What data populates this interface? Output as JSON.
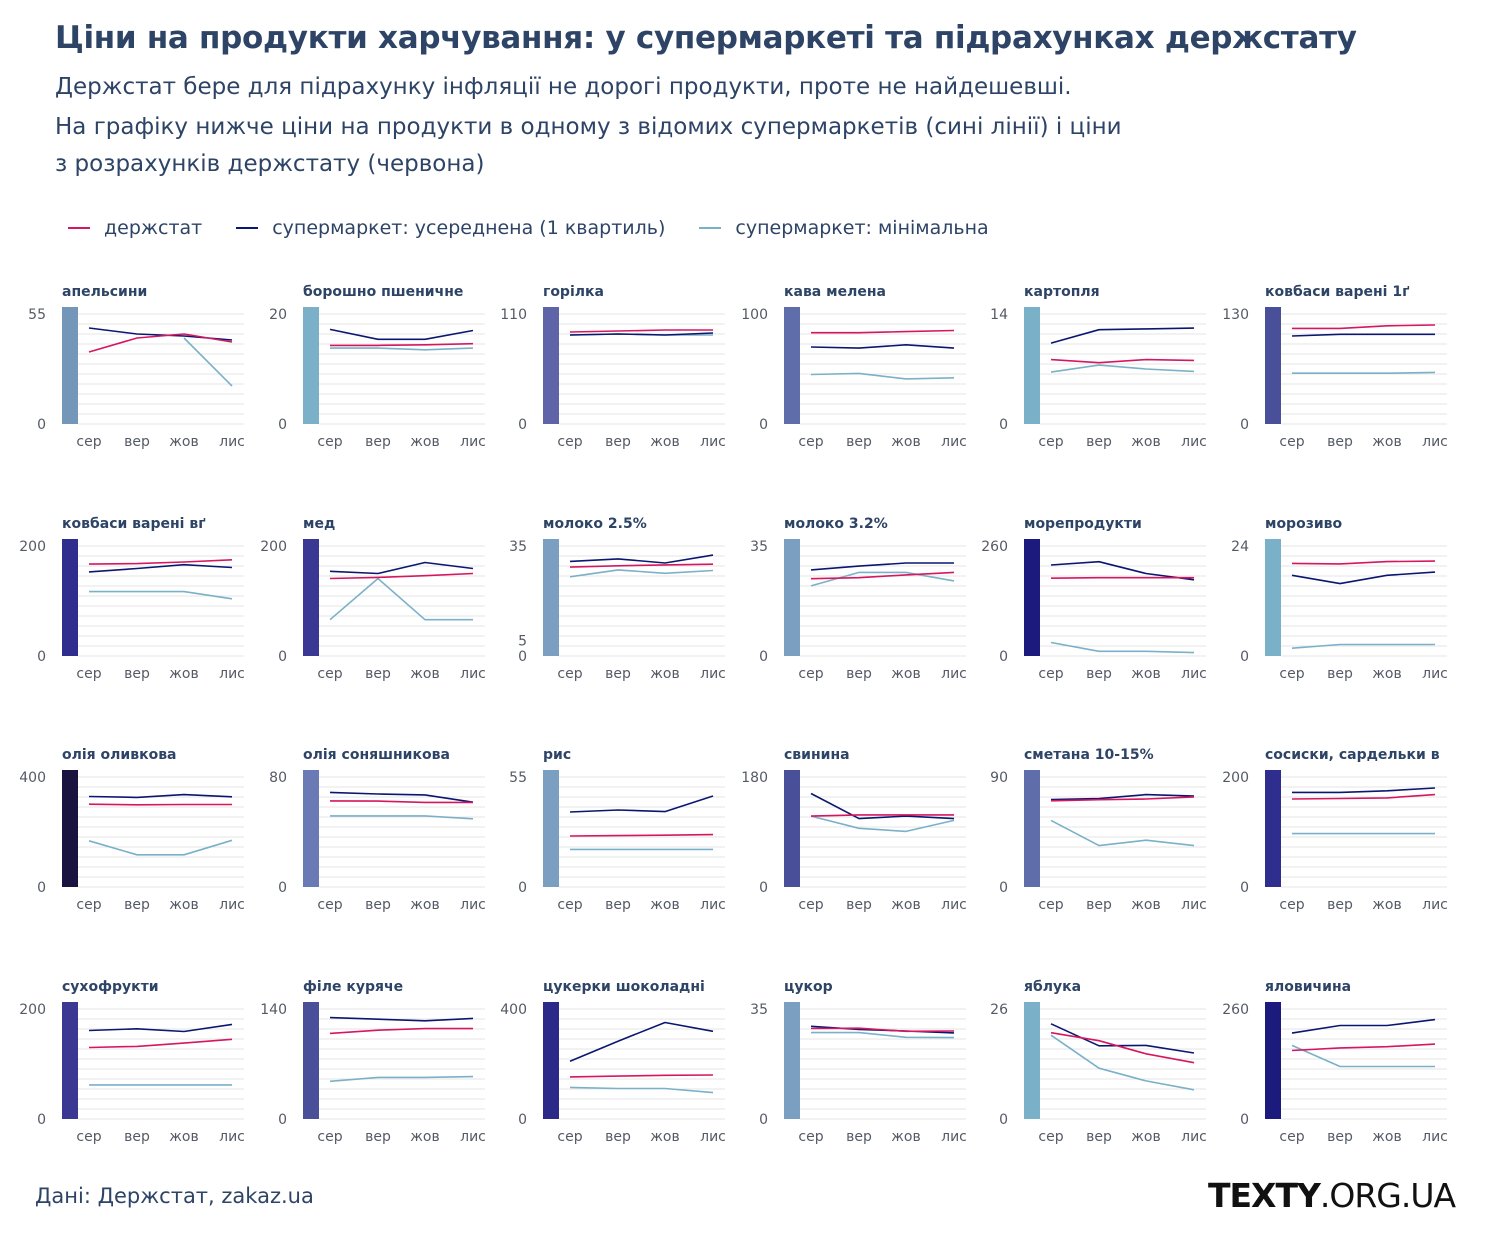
{
  "header": {
    "title": "Ціни на продукти харчування: у супермаркеті та підрахунках держстату",
    "subtitle_lines": [
      "Держстат бере для підрахунку інфляції не дорогі продукти, проте не найдешевші.",
      "На графіку нижче ціни на продукти в одному з відомих супермаркетів (сині лінії) і ціни",
      "з розрахунків держстату (червона)"
    ]
  },
  "legend": [
    {
      "label": "держстат",
      "color": "#d6175f"
    },
    {
      "label": "супермаркет: усереднена (1 квартиль)",
      "color": "#0b1670"
    },
    {
      "label": "супермаркет: мінімальна",
      "color": "#7ab1c8"
    }
  ],
  "footer": {
    "source": "Дані: Держстат, zakaz.ua",
    "logo_bold": "TEXTY",
    "logo_rest": ".ORG.UA"
  },
  "chart_data": {
    "type": "line",
    "x": [
      "сер",
      "вер",
      "жов",
      "лис"
    ],
    "series_names": [
      "держстат",
      "супермаркет: усереднена (1 квартиль)",
      "супермаркет: мінімальна"
    ],
    "series_colors": [
      "#d6175f",
      "#0b1670",
      "#7ab1c8"
    ],
    "panels": [
      {
        "title": "апельсини",
        "yticks": [
          0,
          55
        ],
        "ymax": 55,
        "bar": "#7496b9",
        "series": [
          [
            36,
            43,
            45,
            41
          ],
          [
            48,
            45,
            44,
            42
          ],
          [
            null,
            null,
            43,
            19
          ]
        ]
      },
      {
        "title": "борошно пшеничне",
        "yticks": [
          0,
          20
        ],
        "ymax": 20,
        "bar": "#7ab1c8",
        "series": [
          [
            14.3,
            14.3,
            14.4,
            14.6
          ],
          [
            17.2,
            15.4,
            15.4,
            17
          ],
          [
            13.8,
            13.8,
            13.5,
            13.8
          ]
        ]
      },
      {
        "title": "горілка",
        "yticks": [
          0,
          110
        ],
        "ymax": 110,
        "bar": "#5f63a8",
        "series": [
          [
            92,
            93,
            94,
            94
          ],
          [
            89,
            90,
            89,
            91
          ],
          [
            89,
            90,
            89,
            89
          ]
        ]
      },
      {
        "title": "кава мелена",
        "yticks": [
          0,
          100
        ],
        "ymax": 100,
        "bar": "#5f6eaa",
        "series": [
          [
            83,
            83,
            84,
            85
          ],
          [
            70,
            69,
            72,
            69
          ],
          [
            45,
            46,
            41,
            42
          ]
        ]
      },
      {
        "title": "картопля",
        "yticks": [
          0,
          14
        ],
        "ymax": 14,
        "bar": "#7ab1c8",
        "series": [
          [
            8.2,
            7.8,
            8.2,
            8.1
          ],
          [
            10.3,
            12,
            12.1,
            12.2
          ],
          [
            6.6,
            7.5,
            7,
            6.7
          ]
        ]
      },
      {
        "title": "ковбаси варені 1ґ",
        "yticks": [
          0,
          130
        ],
        "ymax": 130,
        "bar": "#4a4f99",
        "series": [
          [
            113,
            113,
            116,
            117
          ],
          [
            104,
            106,
            106,
            106
          ],
          [
            60,
            60,
            60,
            61
          ]
        ]
      },
      {
        "title": "ковбаси варені вґ",
        "yticks": [
          0,
          200
        ],
        "ymax": 200,
        "bar": "#2f2e8e",
        "series": [
          [
            167,
            168,
            171,
            175
          ],
          [
            153,
            159,
            166,
            161
          ],
          [
            117,
            117,
            117,
            104
          ]
        ]
      },
      {
        "title": "мед",
        "yticks": [
          0,
          200
        ],
        "ymax": 200,
        "bar": "#3b3894",
        "series": [
          [
            141,
            143,
            146,
            150
          ],
          [
            154,
            150,
            170,
            159
          ],
          [
            66,
            141,
            66,
            66
          ]
        ]
      },
      {
        "title": "молоко 2.5%",
        "yticks": [
          0,
          5,
          35
        ],
        "ymax": 35,
        "bar": "#7a9fc0",
        "series": [
          [
            28.3,
            28.7,
            29,
            29.2
          ],
          [
            30.1,
            30.9,
            29.6,
            32.1
          ],
          [
            25.2,
            27.4,
            26.3,
            27.2
          ]
        ]
      },
      {
        "title": "молоко 3.2%",
        "yticks": [
          0,
          35
        ],
        "ymax": 35,
        "bar": "#7a9fc0",
        "series": [
          [
            24.6,
            24.9,
            25.8,
            26.6
          ],
          [
            27.4,
            28.6,
            29.6,
            29.6
          ],
          [
            22.3,
            26.6,
            26.6,
            23.9
          ]
        ]
      },
      {
        "title": "морепродукти",
        "yticks": [
          0,
          260
        ],
        "ymax": 260,
        "bar": "#1d1a7d",
        "series": [
          [
            184,
            185,
            185,
            185
          ],
          [
            215,
            223,
            195,
            180
          ],
          [
            32,
            11,
            11,
            8
          ]
        ]
      },
      {
        "title": "морозиво",
        "yticks": [
          0,
          24
        ],
        "ymax": 24,
        "bar": "#7ab1c8",
        "series": [
          [
            20.2,
            20.1,
            20.6,
            20.7
          ],
          [
            17.6,
            15.8,
            17.6,
            18.3
          ],
          [
            1.7,
            2.5,
            2.5,
            2.5
          ]
        ]
      },
      {
        "title": "олія оливкова",
        "yticks": [
          0,
          400
        ],
        "ymax": 400,
        "bar": "#1b133f",
        "series": [
          [
            301,
            299,
            300,
            300
          ],
          [
            329,
            326,
            336,
            328
          ],
          [
            168,
            117,
            117,
            170
          ]
        ]
      },
      {
        "title": "олія соняшникова",
        "yticks": [
          0,
          80
        ],
        "ymax": 80,
        "bar": "#6a7ab4",
        "series": [
          [
            62.6,
            62.5,
            61.5,
            61.5
          ],
          [
            68.8,
            67.6,
            67,
            61.7
          ],
          [
            51.7,
            51.7,
            51.7,
            49.6
          ]
        ]
      },
      {
        "title": "рис",
        "yticks": [
          0,
          55
        ],
        "ymax": 55,
        "bar": "#7a9fc0",
        "series": [
          [
            25.5,
            25.7,
            25.9,
            26.2
          ],
          [
            37.5,
            38.5,
            37.7,
            45.5
          ],
          [
            18.8,
            18.8,
            18.8,
            18.8
          ]
        ]
      },
      {
        "title": "свинина",
        "yticks": [
          0,
          180
        ],
        "ymax": 180,
        "bar": "#4a4f99",
        "series": [
          [
            116,
            118,
            118,
            118
          ],
          [
            153,
            112,
            116,
            112
          ],
          [
            116,
            96,
            91,
            109
          ]
        ]
      },
      {
        "title": "сметана 10-15%",
        "yticks": [
          0,
          90
        ],
        "ymax": 90,
        "bar": "#5f6eaa",
        "series": [
          [
            70.5,
            71.4,
            72,
            73.7
          ],
          [
            71.5,
            72.3,
            75.6,
            74.4
          ],
          [
            54.5,
            33.9,
            38.3,
            33.9
          ]
        ]
      },
      {
        "title": "сосиски, сардельки в",
        "yticks": [
          0,
          200
        ],
        "ymax": 200,
        "bar": "#2f2e8e",
        "series": [
          [
            160,
            161,
            162,
            168
          ],
          [
            172,
            172,
            175,
            180
          ],
          [
            97,
            97,
            97,
            97
          ]
        ]
      },
      {
        "title": "сухофрукти",
        "yticks": [
          0,
          200
        ],
        "ymax": 200,
        "bar": "#3b3894",
        "series": [
          [
            130,
            132,
            138,
            145
          ],
          [
            161,
            164,
            159,
            172
          ],
          [
            62,
            62,
            62,
            62
          ]
        ]
      },
      {
        "title": "філе куряче",
        "yticks": [
          0,
          140
        ],
        "ymax": 140,
        "bar": "#4a4f99",
        "series": [
          [
            109,
            113,
            115,
            115
          ],
          [
            129,
            127,
            125,
            128
          ],
          [
            48,
            53,
            53,
            54
          ]
        ]
      },
      {
        "title": "цукерки шоколадні",
        "yticks": [
          0,
          400
        ],
        "ymax": 400,
        "bar": "#2c2a89",
        "series": [
          [
            153,
            156,
            159,
            160
          ],
          [
            210,
            283,
            351,
            319
          ],
          [
            115,
            111,
            111,
            96
          ]
        ]
      },
      {
        "title": "цукор",
        "yticks": [
          0,
          35
        ],
        "ymax": 35,
        "bar": "#7a9fc0",
        "series": [
          [
            28.8,
            28.9,
            27.9,
            28
          ],
          [
            29.5,
            28.5,
            28,
            27.4
          ],
          [
            27.5,
            27.5,
            26,
            25.9
          ]
        ]
      },
      {
        "title": "яблука",
        "yticks": [
          0,
          26
        ],
        "ymax": 26,
        "bar": "#7ab1c8",
        "series": [
          [
            20.4,
            18.5,
            15.4,
            13.3
          ],
          [
            22.5,
            17.3,
            17.4,
            15.6
          ],
          [
            19.8,
            12,
            9,
            6.9
          ]
        ]
      },
      {
        "title": "яловичина",
        "yticks": [
          0,
          260
        ],
        "ymax": 260,
        "bar": "#1d1a7d",
        "series": [
          [
            162,
            168,
            171,
            177
          ],
          [
            203,
            221,
            221,
            235
          ],
          [
            174,
            124,
            124,
            124
          ]
        ]
      }
    ]
  }
}
